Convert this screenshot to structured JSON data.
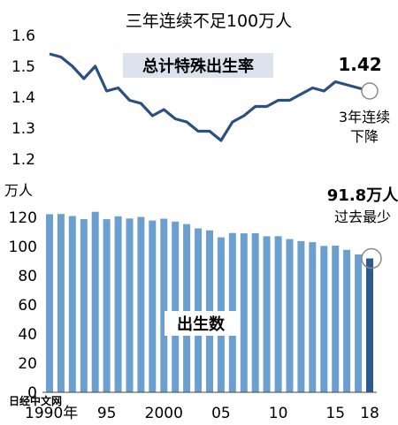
{
  "title": "三年连续不足100万人",
  "watermark": "日经中文网",
  "colors": {
    "line": "#2a4f80",
    "bar": "#6a9fd0",
    "bar_last": "#2b5a91",
    "marker": "#8a8a8a",
    "box_bg": "#dde3ee"
  },
  "chart_data": [
    {
      "type": "line",
      "title": "总计特殊出生率",
      "ylim": [
        1.2,
        1.6
      ],
      "yticks": [
        "1.2",
        "1.3",
        "1.4",
        "1.5",
        "1.6"
      ],
      "x": [
        1990,
        1991,
        1992,
        1993,
        1994,
        1995,
        1996,
        1997,
        1998,
        1999,
        2000,
        2001,
        2002,
        2003,
        2004,
        2005,
        2006,
        2007,
        2008,
        2009,
        2010,
        2011,
        2012,
        2013,
        2014,
        2015,
        2016,
        2017,
        2018
      ],
      "values": [
        1.54,
        1.53,
        1.5,
        1.46,
        1.5,
        1.42,
        1.43,
        1.39,
        1.38,
        1.34,
        1.36,
        1.33,
        1.32,
        1.29,
        1.29,
        1.26,
        1.32,
        1.34,
        1.37,
        1.37,
        1.39,
        1.39,
        1.41,
        1.43,
        1.42,
        1.45,
        1.44,
        1.43,
        1.42
      ],
      "annotation_value": "1.42",
      "annotation_note": [
        "3年连续",
        "下降"
      ]
    },
    {
      "type": "bar",
      "title": "出生数",
      "ylabel": "万人",
      "ylim": [
        0,
        120
      ],
      "yticks": [
        "0",
        "20",
        "40",
        "60",
        "80",
        "100",
        "120"
      ],
      "x": [
        1990,
        1991,
        1992,
        1993,
        1994,
        1995,
        1996,
        1997,
        1998,
        1999,
        2000,
        2001,
        2002,
        2003,
        2004,
        2005,
        2006,
        2007,
        2008,
        2009,
        2010,
        2011,
        2012,
        2013,
        2014,
        2015,
        2016,
        2017,
        2018
      ],
      "xtick_labels": [
        "1990年",
        "95",
        "2000",
        "05",
        "10",
        "15",
        "18"
      ],
      "values": [
        122.2,
        122.3,
        120.9,
        118.8,
        123.8,
        118.7,
        120.7,
        119.2,
        120.3,
        117.8,
        119.1,
        117.1,
        115.4,
        112.4,
        111.1,
        106.3,
        109.3,
        109.0,
        109.1,
        107.0,
        107.1,
        105.1,
        103.7,
        103.0,
        100.4,
        100.6,
        97.7,
        94.6,
        91.8
      ],
      "annotation_value": "91.8万人",
      "annotation_note": "过去最少"
    }
  ]
}
